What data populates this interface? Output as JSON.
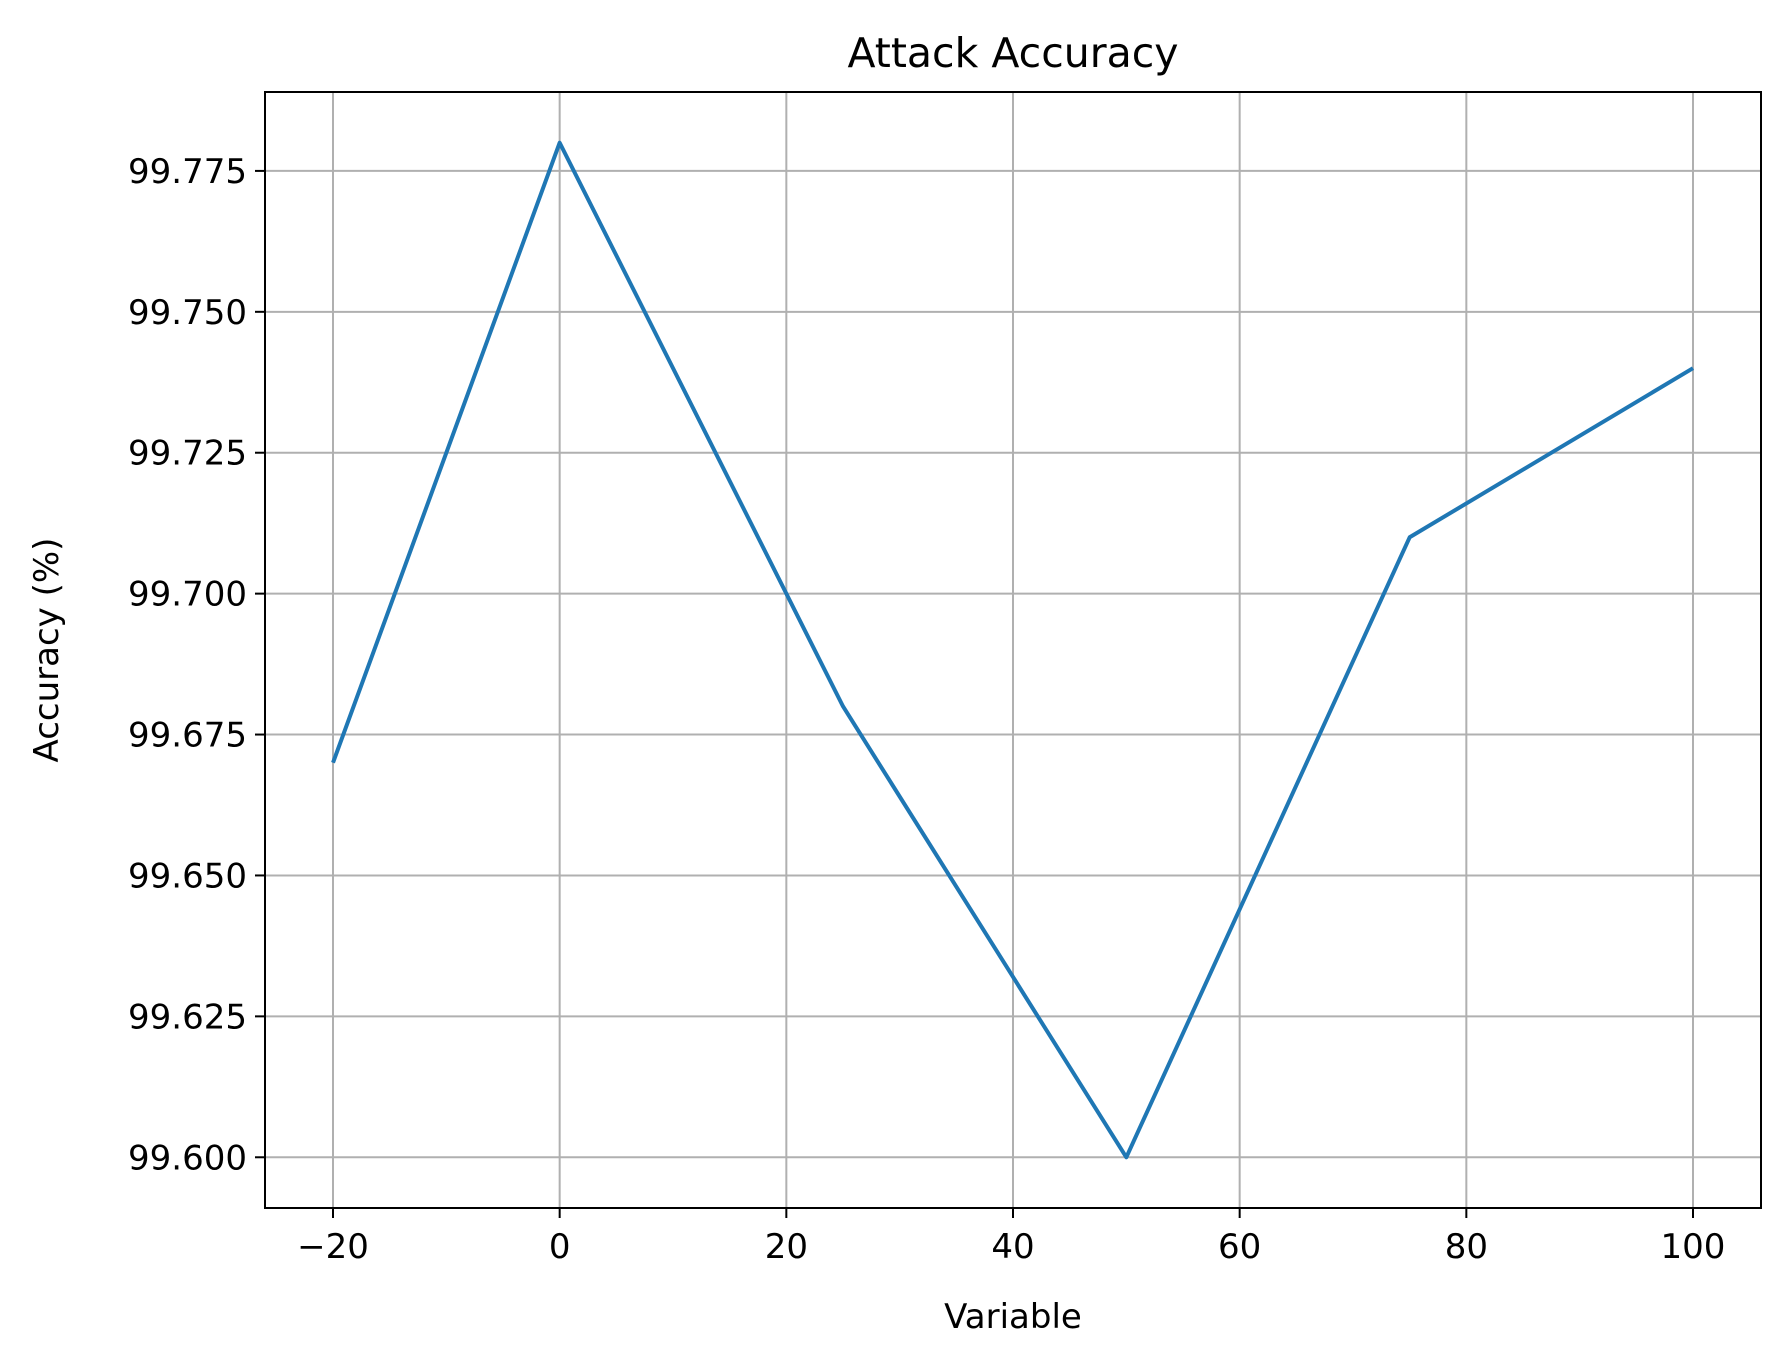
{
  "chart_data": {
    "type": "line",
    "title": "Attack Accuracy",
    "xlabel": "Variable",
    "ylabel": "Accuracy (%)",
    "x": [
      -20,
      0,
      25,
      50,
      75,
      100
    ],
    "series": [
      {
        "values": [
          99.67,
          99.78,
          99.68,
          99.6,
          99.71,
          99.74
        ],
        "color": "#1f77b4"
      }
    ],
    "xlim": [
      -26,
      106
    ],
    "ylim": [
      99.591,
      99.789
    ],
    "xticks": [
      -20,
      0,
      20,
      40,
      60,
      80,
      100
    ],
    "xtick_labels": [
      "−20",
      "0",
      "20",
      "40",
      "60",
      "80",
      "100"
    ],
    "yticks": [
      99.6,
      99.625,
      99.65,
      99.675,
      99.7,
      99.725,
      99.75,
      99.775
    ],
    "ytick_labels": [
      "99.600",
      "99.625",
      "99.650",
      "99.675",
      "99.700",
      "99.725",
      "99.750",
      "99.775"
    ],
    "grid": true,
    "grid_color": "#b0b0b0",
    "axes_color": "#000000"
  }
}
